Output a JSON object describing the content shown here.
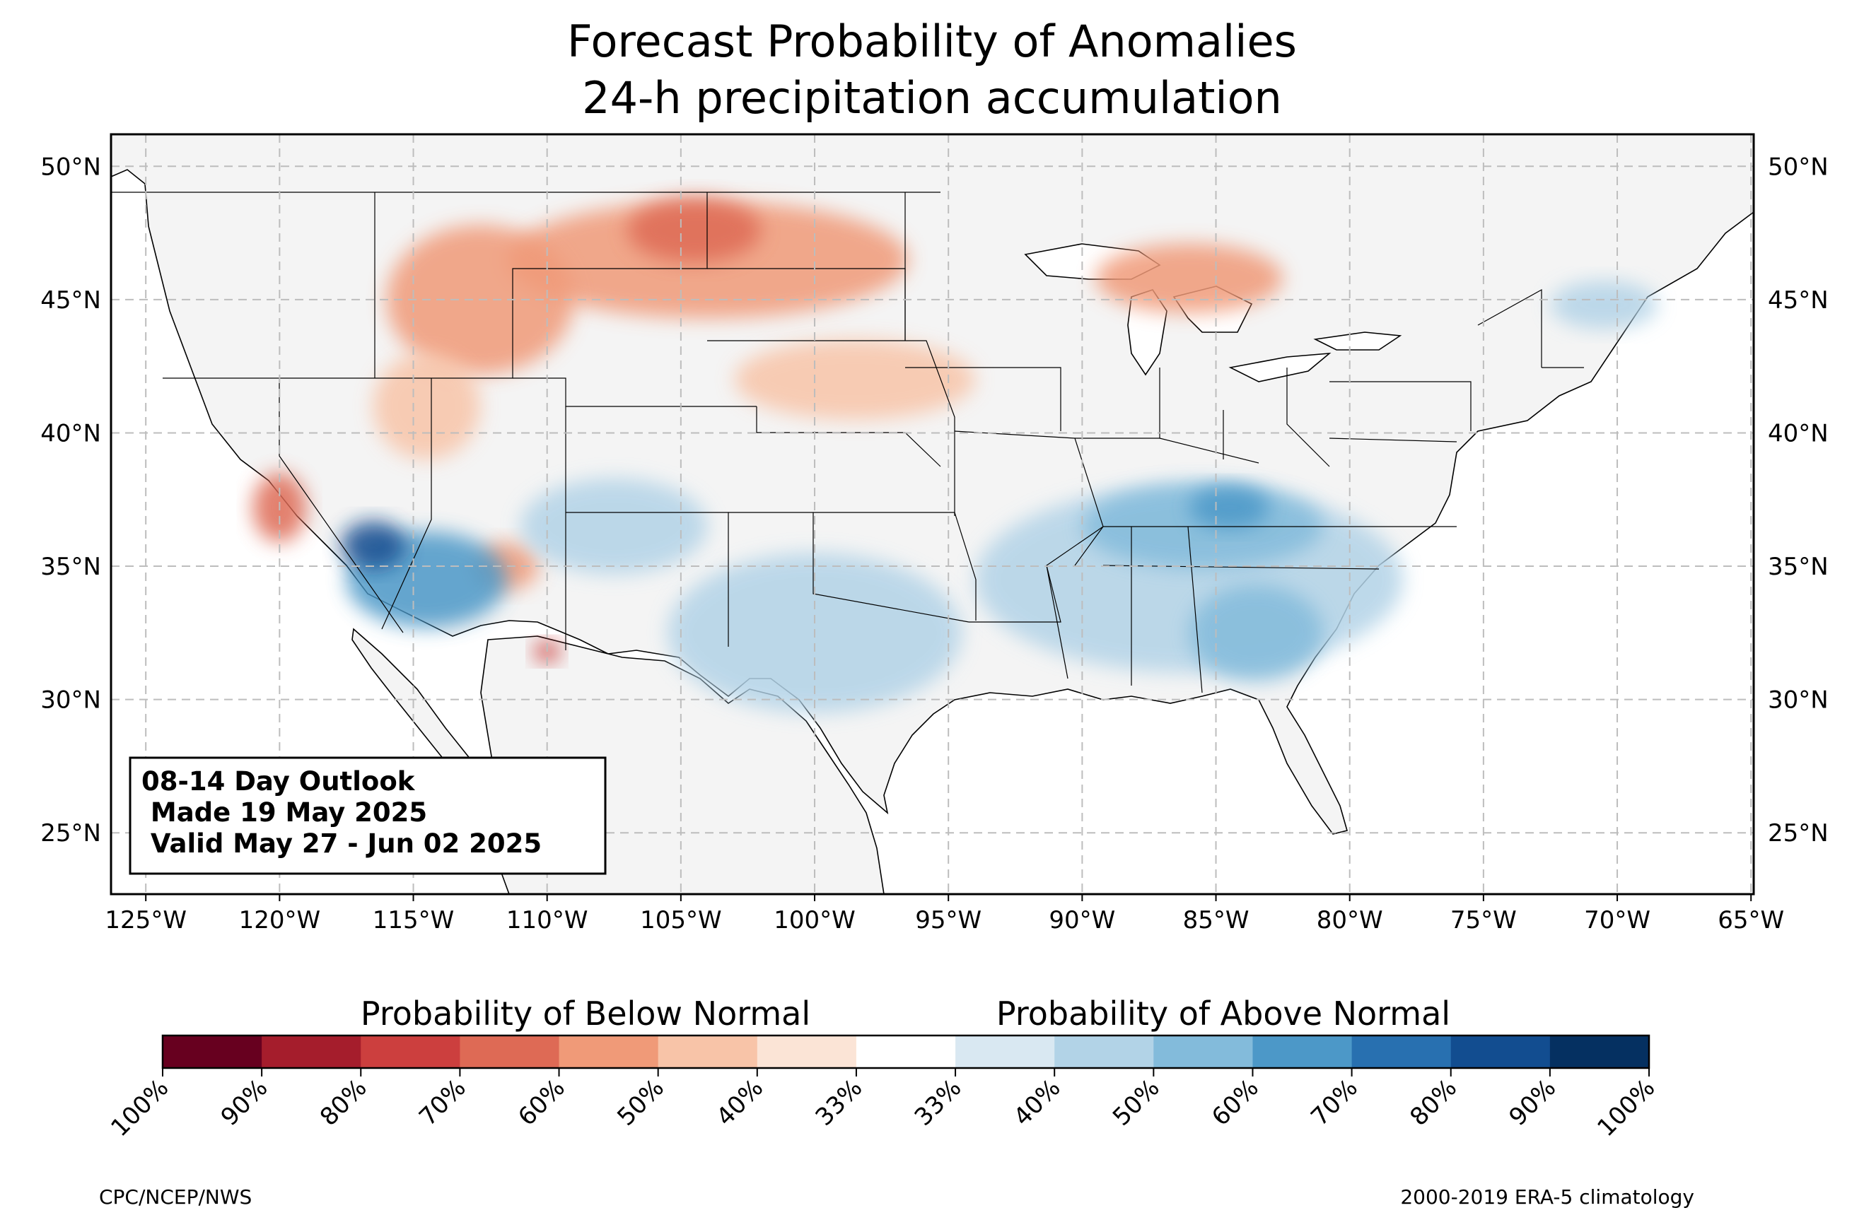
{
  "title": {
    "line1": "Forecast Probability of Anomalies",
    "line2": "24-h precipitation accumulation"
  },
  "map": {
    "lon_range": [
      -126.3,
      -64.9
    ],
    "lat_range": [
      22.7,
      51.2
    ],
    "lon_ticks": [
      "125°W",
      "120°W",
      "115°W",
      "110°W",
      "105°W",
      "100°W",
      "95°W",
      "90°W",
      "85°W",
      "80°W",
      "75°W",
      "70°W",
      "65°W"
    ],
    "lon_values": [
      -125,
      -120,
      -115,
      -110,
      -105,
      -100,
      -95,
      -90,
      -85,
      -80,
      -75,
      -70,
      -65
    ],
    "lat_ticks": [
      "25°N",
      "30°N",
      "35°N",
      "40°N",
      "45°N",
      "50°N"
    ],
    "lat_values": [
      25,
      30,
      35,
      40,
      45,
      50
    ],
    "grid": true,
    "land_color": "#f4f4f4",
    "ocean_color": "#ffffff"
  },
  "outlook": {
    "line1": "08-14 Day Outlook",
    "line2": "Made 19 May 2025",
    "line3": "Valid May 27 - Jun 02 2025"
  },
  "colorbar": {
    "below_label": "Probability of Below Normal",
    "above_label": "Probability of Above Normal",
    "colors": [
      "#67001f",
      "#a51d2c",
      "#cc3f3e",
      "#de6a55",
      "#f09a78",
      "#f8c4a8",
      "#fbe4d6",
      "#ffffff",
      "#d9e8f2",
      "#b2d3e7",
      "#83bbdb",
      "#4c98c8",
      "#2870b0",
      "#124d90",
      "#053061"
    ],
    "ticks": [
      "100%",
      "90%",
      "80%",
      "70%",
      "60%",
      "50%",
      "40%",
      "33%",
      "33%",
      "40%",
      "50%",
      "60%",
      "70%",
      "80%",
      "90%",
      "100%"
    ]
  },
  "anomaly_regions": [
    {
      "label": "montana-dakotas-dry",
      "lon": -104,
      "lat": 46.5,
      "rx": 7.5,
      "ry": 2.2,
      "color": "#f09a78"
    },
    {
      "label": "north-dakota-core-dry",
      "lon": -104.5,
      "lat": 47.6,
      "rx": 2.5,
      "ry": 1.2,
      "color": "#de6a55"
    },
    {
      "label": "idaho-wyoming-dry",
      "lon": -112.5,
      "lat": 45.0,
      "rx": 3.5,
      "ry": 2.8,
      "color": "#f09a78"
    },
    {
      "label": "utah-dry",
      "lon": -114.5,
      "lat": 41.0,
      "rx": 2.0,
      "ry": 2.0,
      "color": "#f8c4a8"
    },
    {
      "label": "nebraska-dry",
      "lon": -98.5,
      "lat": 42.0,
      "rx": 4.5,
      "ry": 1.5,
      "color": "#f8c4a8"
    },
    {
      "label": "michigan-dry",
      "lon": -86.0,
      "lat": 45.8,
      "rx": 3.5,
      "ry": 1.3,
      "color": "#f09a78"
    },
    {
      "label": "california-dry",
      "lon": -120.0,
      "lat": 37.2,
      "rx": 1.0,
      "ry": 1.3,
      "color": "#de6a55"
    },
    {
      "label": "arizona-dry",
      "lon": -111.5,
      "lat": 35.0,
      "rx": 1.2,
      "ry": 0.9,
      "color": "#f09a78"
    },
    {
      "label": "arizona-south-dry",
      "lon": -110.0,
      "lat": 31.8,
      "rx": 0.5,
      "ry": 0.4,
      "color": "#cc3f3e"
    },
    {
      "label": "southwest-wet",
      "lon": -114.5,
      "lat": 34.5,
      "rx": 3.0,
      "ry": 1.8,
      "color": "#4c98c8"
    },
    {
      "label": "mojave-wet-core",
      "lon": -116.5,
      "lat": 35.8,
      "rx": 1.2,
      "ry": 0.9,
      "color": "#124d90"
    },
    {
      "label": "colorado-plateau-wet",
      "lon": -107.5,
      "lat": 36.5,
      "rx": 3.5,
      "ry": 1.8,
      "color": "#b2d3e7"
    },
    {
      "label": "texas-wet",
      "lon": -100.0,
      "lat": 32.5,
      "rx": 5.5,
      "ry": 3.0,
      "color": "#b2d3e7"
    },
    {
      "label": "southeast-wet",
      "lon": -86.0,
      "lat": 34.5,
      "rx": 8.0,
      "ry": 3.5,
      "color": "#b2d3e7"
    },
    {
      "label": "tennessee-valley-wet",
      "lon": -85.5,
      "lat": 36.5,
      "rx": 4.5,
      "ry": 1.6,
      "color": "#83bbdb"
    },
    {
      "label": "kentucky-core-wet",
      "lon": -84.5,
      "lat": 37.2,
      "rx": 1.5,
      "ry": 0.8,
      "color": "#4c98c8"
    },
    {
      "label": "georgia-wet",
      "lon": -83.5,
      "lat": 32.5,
      "rx": 2.5,
      "ry": 1.8,
      "color": "#83bbdb"
    },
    {
      "label": "new-england-wet",
      "lon": -70.5,
      "lat": 44.8,
      "rx": 2.0,
      "ry": 0.9,
      "color": "#b2d3e7"
    }
  ],
  "credits": {
    "left": "CPC/NCEP/NWS",
    "right": "2000-2019 ERA-5 climatology"
  }
}
